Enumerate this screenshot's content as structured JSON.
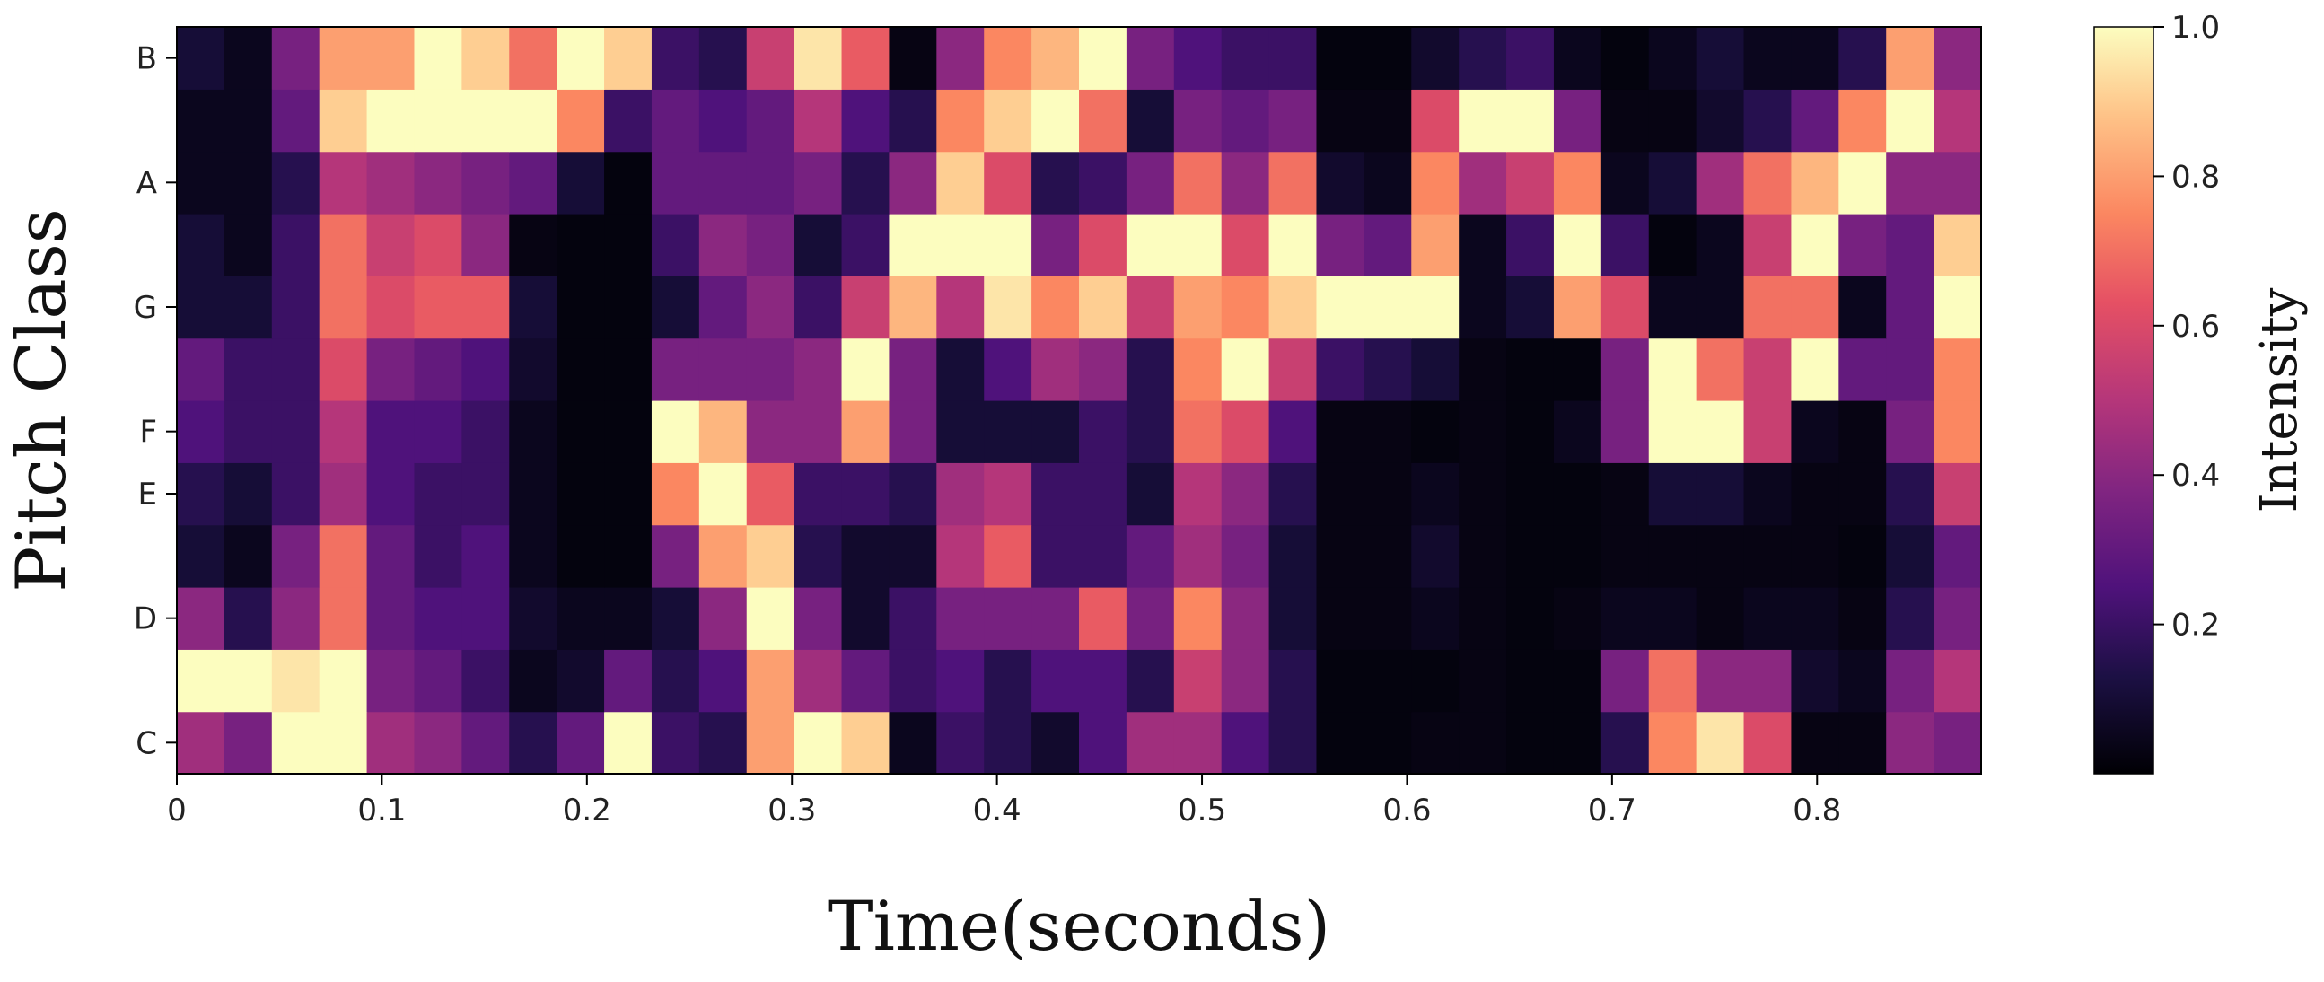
{
  "chart_data": {
    "type": "heatmap",
    "xlabel": "Time(seconds)",
    "ylabel": "Pitch Class",
    "colorbar_label": "Intensity",
    "colormap": "magma",
    "x_range": [
      0,
      0.88
    ],
    "x_ticks": [
      0,
      0.1,
      0.2,
      0.3,
      0.4,
      0.5,
      0.6,
      0.7,
      0.8
    ],
    "x_tick_labels": [
      "0",
      "0.1",
      "0.2",
      "0.3",
      "0.4",
      "0.5",
      "0.6",
      "0.7",
      "0.8"
    ],
    "y_tick_rows": [
      0,
      2,
      4,
      5,
      7,
      9,
      11
    ],
    "y_tick_labels": [
      "C",
      "D",
      "E",
      "F",
      "G",
      "A",
      "B"
    ],
    "colorbar_ticks": [
      0.2,
      0.4,
      0.6,
      0.8,
      1.0
    ],
    "colorbar_tick_labels": [
      "0.2",
      "0.4",
      "0.6",
      "0.8",
      "1.0"
    ],
    "value_range": [
      0,
      1
    ],
    "rows": 12,
    "cols": 38,
    "values": [
      [
        0.45,
        0.35,
        1.0,
        1.0,
        0.45,
        0.4,
        0.3,
        0.15,
        0.3,
        1.0,
        0.2,
        0.15,
        0.8,
        1.0,
        0.9,
        0.05,
        0.2,
        0.15,
        0.08,
        0.25,
        0.45,
        0.45,
        0.25,
        0.15,
        0.02,
        0.02,
        0.03,
        0.03,
        0.02,
        0.02,
        0.15,
        0.75,
        0.95,
        0.6,
        0.03,
        0.03,
        0.4,
        0.35
      ],
      [
        1.0,
        1.0,
        0.95,
        1.0,
        0.35,
        0.3,
        0.2,
        0.05,
        0.08,
        0.3,
        0.15,
        0.25,
        0.8,
        0.45,
        0.3,
        0.2,
        0.25,
        0.15,
        0.25,
        0.25,
        0.15,
        0.55,
        0.4,
        0.15,
        0.02,
        0.02,
        0.02,
        0.03,
        0.02,
        0.02,
        0.35,
        0.7,
        0.4,
        0.4,
        0.08,
        0.05,
        0.35,
        0.5
      ],
      [
        0.4,
        0.15,
        0.4,
        0.7,
        0.3,
        0.25,
        0.25,
        0.08,
        0.05,
        0.05,
        0.1,
        0.4,
        1.0,
        0.35,
        0.08,
        0.2,
        0.35,
        0.35,
        0.35,
        0.65,
        0.35,
        0.75,
        0.4,
        0.1,
        0.03,
        0.03,
        0.05,
        0.03,
        0.02,
        0.03,
        0.05,
        0.05,
        0.03,
        0.05,
        0.05,
        0.03,
        0.15,
        0.35
      ],
      [
        0.1,
        0.05,
        0.35,
        0.7,
        0.3,
        0.2,
        0.25,
        0.05,
        0.02,
        0.02,
        0.35,
        0.8,
        0.9,
        0.15,
        0.08,
        0.08,
        0.5,
        0.65,
        0.2,
        0.2,
        0.3,
        0.45,
        0.35,
        0.1,
        0.03,
        0.03,
        0.08,
        0.03,
        0.02,
        0.02,
        0.03,
        0.03,
        0.03,
        0.03,
        0.03,
        0.02,
        0.1,
        0.3
      ],
      [
        0.15,
        0.1,
        0.2,
        0.45,
        0.25,
        0.2,
        0.2,
        0.05,
        0.02,
        0.02,
        0.75,
        1.0,
        0.65,
        0.2,
        0.2,
        0.15,
        0.45,
        0.5,
        0.2,
        0.2,
        0.1,
        0.5,
        0.4,
        0.15,
        0.03,
        0.03,
        0.05,
        0.03,
        0.02,
        0.02,
        0.03,
        0.1,
        0.1,
        0.05,
        0.03,
        0.03,
        0.15,
        0.55
      ],
      [
        0.25,
        0.2,
        0.2,
        0.5,
        0.25,
        0.25,
        0.2,
        0.05,
        0.02,
        0.02,
        1.0,
        0.85,
        0.4,
        0.4,
        0.8,
        0.35,
        0.1,
        0.1,
        0.1,
        0.2,
        0.15,
        0.7,
        0.6,
        0.25,
        0.03,
        0.03,
        0.02,
        0.03,
        0.02,
        0.05,
        0.35,
        1.0,
        1.0,
        0.55,
        0.05,
        0.03,
        0.35,
        0.75
      ],
      [
        0.3,
        0.2,
        0.2,
        0.6,
        0.35,
        0.3,
        0.25,
        0.08,
        0.02,
        0.02,
        0.35,
        0.35,
        0.35,
        0.4,
        1.0,
        0.35,
        0.1,
        0.25,
        0.45,
        0.4,
        0.15,
        0.75,
        1.0,
        0.55,
        0.2,
        0.15,
        0.1,
        0.03,
        0.02,
        0.02,
        0.35,
        1.0,
        0.7,
        0.55,
        1.0,
        0.3,
        0.3,
        0.75
      ],
      [
        0.1,
        0.1,
        0.2,
        0.7,
        0.6,
        0.65,
        0.65,
        0.1,
        0.02,
        0.02,
        0.1,
        0.3,
        0.4,
        0.2,
        0.55,
        0.85,
        0.5,
        0.95,
        0.75,
        0.9,
        0.55,
        0.8,
        0.75,
        0.9,
        1.0,
        1.0,
        1.0,
        0.05,
        0.1,
        0.8,
        0.6,
        0.05,
        0.05,
        0.7,
        0.7,
        0.05,
        0.3,
        1.0
      ],
      [
        0.1,
        0.05,
        0.2,
        0.7,
        0.55,
        0.6,
        0.4,
        0.03,
        0.02,
        0.02,
        0.2,
        0.4,
        0.35,
        0.1,
        0.2,
        1.0,
        1.0,
        1.0,
        0.35,
        0.6,
        1.0,
        1.0,
        0.6,
        1.0,
        0.35,
        0.3,
        0.8,
        0.05,
        0.2,
        1.0,
        0.2,
        0.02,
        0.05,
        0.55,
        1.0,
        0.35,
        0.3,
        0.9
      ],
      [
        0.05,
        0.05,
        0.15,
        0.5,
        0.45,
        0.4,
        0.35,
        0.3,
        0.1,
        0.02,
        0.3,
        0.3,
        0.3,
        0.35,
        0.15,
        0.4,
        0.9,
        0.6,
        0.15,
        0.2,
        0.35,
        0.7,
        0.4,
        0.7,
        0.08,
        0.05,
        0.75,
        0.45,
        0.55,
        0.75,
        0.05,
        0.1,
        0.45,
        0.7,
        0.85,
        1.0,
        0.4,
        0.4
      ],
      [
        0.05,
        0.05,
        0.3,
        0.9,
        1.0,
        1.0,
        1.0,
        1.0,
        0.75,
        0.2,
        0.3,
        0.25,
        0.3,
        0.5,
        0.25,
        0.15,
        0.75,
        0.9,
        1.0,
        0.7,
        0.1,
        0.35,
        0.3,
        0.35,
        0.03,
        0.03,
        0.6,
        1.0,
        1.0,
        0.35,
        0.03,
        0.03,
        0.08,
        0.15,
        0.3,
        0.75,
        1.0,
        0.5
      ],
      [
        0.1,
        0.05,
        0.35,
        0.8,
        0.8,
        1.0,
        0.9,
        0.7,
        1.0,
        0.9,
        0.2,
        0.15,
        0.55,
        0.95,
        0.65,
        0.03,
        0.4,
        0.75,
        0.85,
        1.0,
        0.35,
        0.25,
        0.2,
        0.2,
        0.02,
        0.02,
        0.08,
        0.15,
        0.2,
        0.05,
        0.02,
        0.05,
        0.1,
        0.05,
        0.05,
        0.15,
        0.8,
        0.4
      ]
    ]
  }
}
